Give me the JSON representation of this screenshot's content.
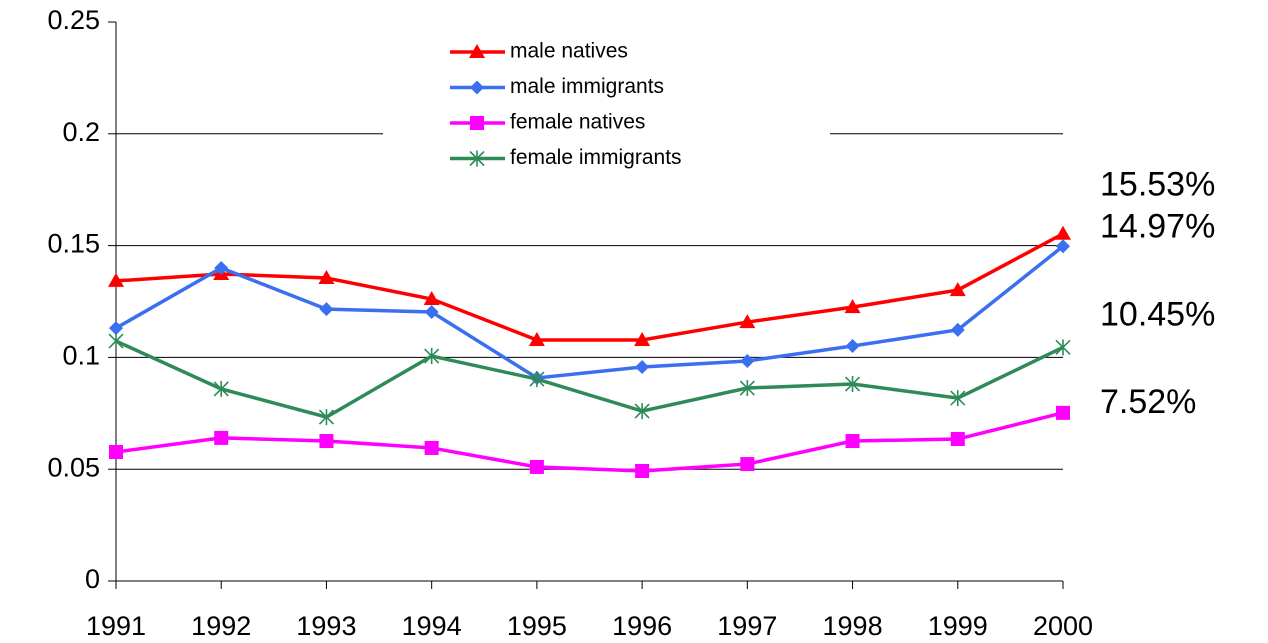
{
  "chart_data": {
    "type": "line",
    "categories": [
      "1991",
      "1992",
      "1993",
      "1994",
      "1995",
      "1996",
      "1997",
      "1998",
      "1999",
      "2000"
    ],
    "series": [
      {
        "name": "male natives",
        "color": "#ff0000",
        "marker": "triangle",
        "values": [
          0.1342,
          0.1373,
          0.1355,
          0.1261,
          0.1078,
          0.1078,
          0.1158,
          0.1225,
          0.1301,
          0.1553
        ],
        "value_labels": [
          null,
          null,
          null,
          null,
          null,
          null,
          null,
          null,
          null,
          "15.53%"
        ]
      },
      {
        "name": "male immigrants",
        "color": "#3a6ff0",
        "marker": "diamond",
        "values": [
          0.1131,
          0.14,
          0.1216,
          0.1203,
          0.0908,
          0.0957,
          0.0984,
          0.1051,
          0.1123,
          0.1497
        ],
        "value_labels": [
          null,
          null,
          null,
          null,
          null,
          null,
          null,
          null,
          null,
          "14.97%"
        ]
      },
      {
        "name": "female natives",
        "color": "#ff00ff",
        "marker": "square",
        "values": [
          0.0577,
          0.064,
          0.0626,
          0.0595,
          0.051,
          0.0492,
          0.0523,
          0.0626,
          0.0635,
          0.0752
        ],
        "value_labels": [
          null,
          null,
          null,
          null,
          null,
          null,
          null,
          null,
          null,
          "7.52%"
        ]
      },
      {
        "name": "female immigrants",
        "color": "#2e8b57",
        "marker": "asterisk",
        "values": [
          0.1073,
          0.0859,
          0.0733,
          0.1006,
          0.0903,
          0.076,
          0.0863,
          0.0881,
          0.0818,
          0.1045
        ],
        "value_labels": [
          null,
          null,
          null,
          null,
          null,
          null,
          null,
          null,
          null,
          "10.45%"
        ]
      }
    ],
    "ylim": [
      0,
      0.25
    ],
    "yticks": [
      0,
      0.05,
      0.1,
      0.15,
      0.2,
      0.25
    ],
    "grid": true
  }
}
